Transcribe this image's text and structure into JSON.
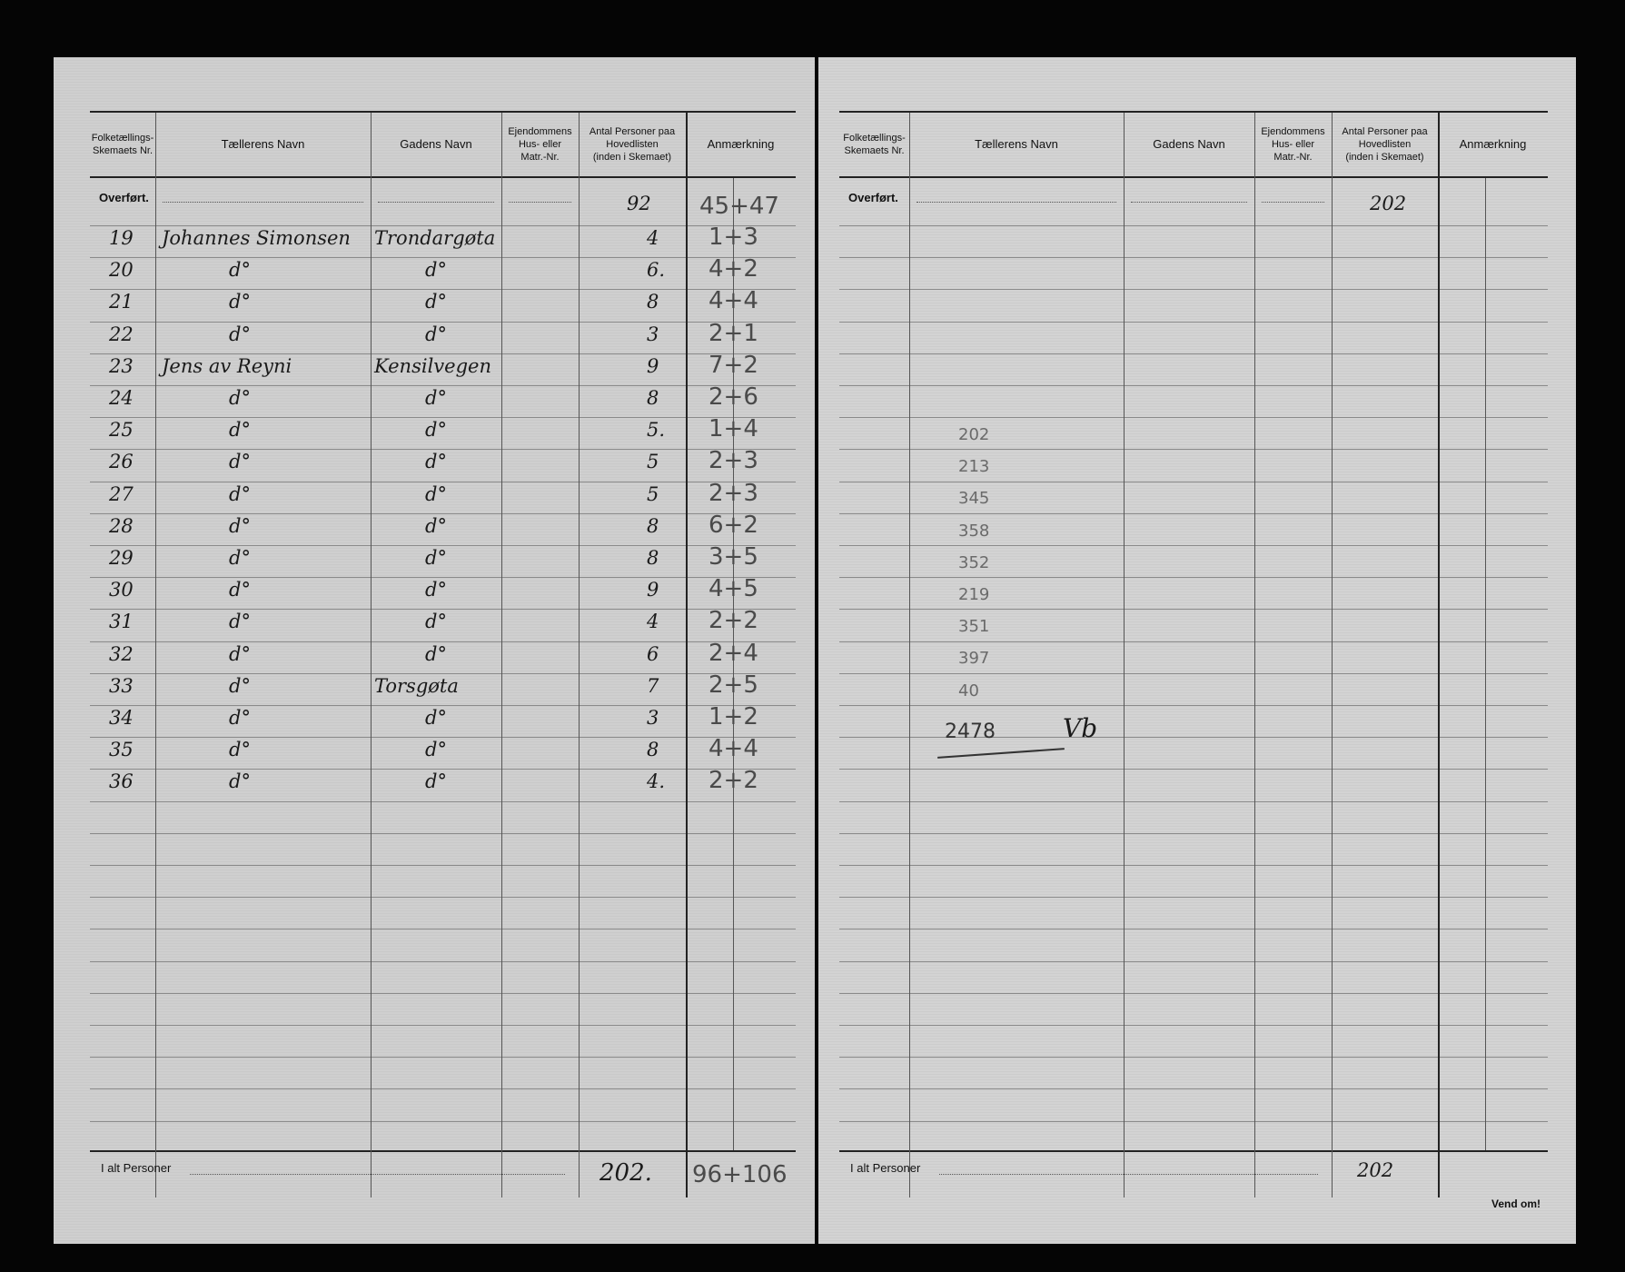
{
  "headers": {
    "col_nr": "Folketællings-\nSkemaets Nr.",
    "col_taeller": "Tællerens Navn",
    "col_gade": "Gadens Navn",
    "col_hus": "Ejendommens\nHus- eller\nMatr.-Nr.",
    "col_antal": "Antal Personer paa\nHovedlisten\n(inden i Skemaet)",
    "col_anm": "Anmærkning"
  },
  "left": {
    "overfort_label": "Overført.",
    "overfort_antal": "92",
    "overfort_anm": "45+47",
    "rows": [
      {
        "nr": "19",
        "taeller": "Johannes Simonsen",
        "gade": "Trondargøta",
        "antal": "4",
        "anm": "1+3"
      },
      {
        "nr": "20",
        "taeller": "d°",
        "gade": "d°",
        "antal": "6.",
        "anm": "4+2"
      },
      {
        "nr": "21",
        "taeller": "d°",
        "gade": "d°",
        "antal": "8",
        "anm": "4+4"
      },
      {
        "nr": "22",
        "taeller": "d°",
        "gade": "d°",
        "antal": "3",
        "anm": "2+1"
      },
      {
        "nr": "23",
        "taeller": "Jens av Reyni",
        "gade": "Kensilvegen",
        "antal": "9",
        "anm": "7+2"
      },
      {
        "nr": "24",
        "taeller": "d°",
        "gade": "d°",
        "antal": "8",
        "anm": "2+6"
      },
      {
        "nr": "25",
        "taeller": "d°",
        "gade": "d°",
        "antal": "5.",
        "anm": "1+4"
      },
      {
        "nr": "26",
        "taeller": "d°",
        "gade": "d°",
        "antal": "5",
        "anm": "2+3"
      },
      {
        "nr": "27",
        "taeller": "d°",
        "gade": "d°",
        "antal": "5",
        "anm": "2+3"
      },
      {
        "nr": "28",
        "taeller": "d°",
        "gade": "d°",
        "antal": "8",
        "anm": "6+2"
      },
      {
        "nr": "29",
        "taeller": "d°",
        "gade": "d°",
        "antal": "8",
        "anm": "3+5"
      },
      {
        "nr": "30",
        "taeller": "d°",
        "gade": "d°",
        "antal": "9",
        "anm": "4+5"
      },
      {
        "nr": "31",
        "taeller": "d°",
        "gade": "d°",
        "antal": "4",
        "anm": "2+2"
      },
      {
        "nr": "32",
        "taeller": "d°",
        "gade": "d°",
        "antal": "6",
        "anm": "2+4"
      },
      {
        "nr": "33",
        "taeller": "d°",
        "gade": "Torsgøta",
        "antal": "7",
        "anm": "2+5"
      },
      {
        "nr": "34",
        "taeller": "d°",
        "gade": "d°",
        "antal": "3",
        "anm": "1+2"
      },
      {
        "nr": "35",
        "taeller": "d°",
        "gade": "d°",
        "antal": "8",
        "anm": "4+4"
      },
      {
        "nr": "36",
        "taeller": "d°",
        "gade": "d°",
        "antal": "4.",
        "anm": "2+2"
      }
    ],
    "total_label": "I alt Personer",
    "total_antal": "202.",
    "total_anm": "96+106"
  },
  "right": {
    "overfort_label": "Overført.",
    "overfort_antal": "202",
    "tally": [
      "202",
      "213",
      "345",
      "358",
      "352",
      "219",
      "351",
      "397",
      "40"
    ],
    "tally_total": "2478",
    "tally_mark": "Vb",
    "total_label": "I alt Personer",
    "total_antal": "202",
    "vend_om": "Vend om!"
  }
}
